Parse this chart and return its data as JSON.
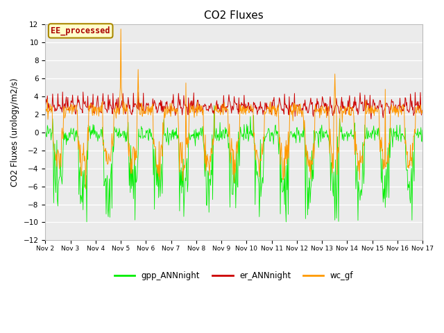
{
  "title": "CO2 Fluxes",
  "ylabel": "CO2 Fluxes (urology/m2/s)",
  "ylim": [
    -12,
    12
  ],
  "yticks": [
    -12,
    -10,
    -8,
    -6,
    -4,
    -2,
    0,
    2,
    4,
    6,
    8,
    10,
    12
  ],
  "bg_color": "#ebebeb",
  "fig_color": "#ffffff",
  "gpp_color": "#00ee00",
  "er_color": "#cc0000",
  "wc_color": "#ff9900",
  "legend_labels": [
    "gpp_ANNnight",
    "er_ANNnight",
    "wc_gf"
  ],
  "annotation_text": "EE_processed",
  "annotation_bg": "#ffffcc",
  "annotation_edge": "#aa8800",
  "annotation_text_color": "#aa0000",
  "x_start": 2,
  "x_end": 17,
  "xtick_positions": [
    2,
    3,
    4,
    5,
    6,
    7,
    8,
    9,
    10,
    11,
    12,
    13,
    14,
    15,
    16,
    17
  ],
  "xtick_labels": [
    "Nov 2",
    "Nov 3",
    "Nov 4",
    "Nov 5",
    "Nov 6",
    "Nov 7",
    "Nov 8",
    "Nov 9",
    "Nov 10",
    "Nov 11",
    "Nov 12",
    "Nov 13",
    "Nov 14",
    "Nov 15",
    "Nov 16",
    "Nov 17"
  ]
}
